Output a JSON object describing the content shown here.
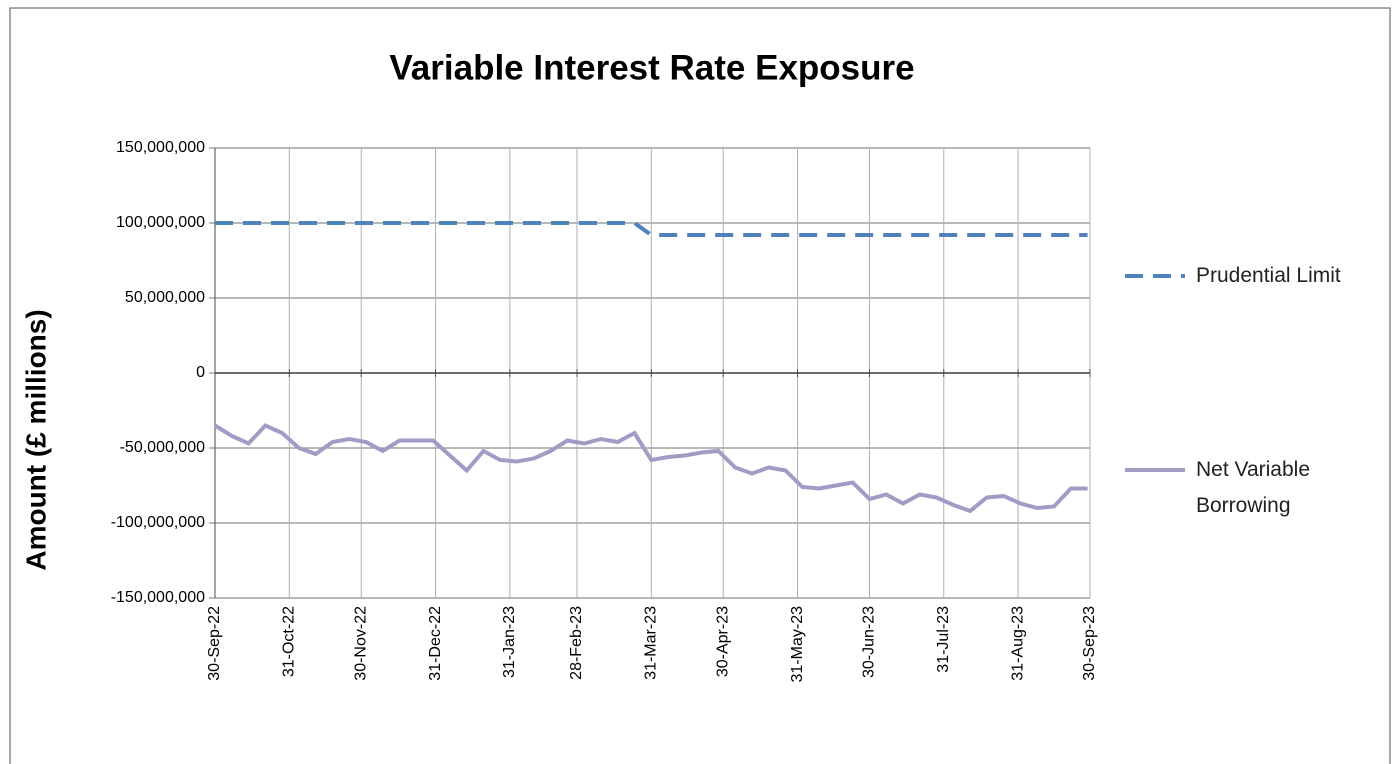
{
  "chart_data": {
    "type": "line",
    "title": "Variable Interest Rate Exposure",
    "y_label": "Amount (£ millions)",
    "x": [
      "2022-09-30",
      "2022-10-07",
      "2022-10-14",
      "2022-10-21",
      "2022-10-28",
      "2022-11-04",
      "2022-11-11",
      "2022-11-18",
      "2022-11-25",
      "2022-12-02",
      "2022-12-09",
      "2022-12-16",
      "2022-12-23",
      "2022-12-30",
      "2023-01-06",
      "2023-01-13",
      "2023-01-20",
      "2023-01-27",
      "2023-02-03",
      "2023-02-10",
      "2023-02-17",
      "2023-02-24",
      "2023-03-03",
      "2023-03-10",
      "2023-03-17",
      "2023-03-24",
      "2023-03-31",
      "2023-04-07",
      "2023-04-14",
      "2023-04-21",
      "2023-04-28",
      "2023-05-05",
      "2023-05-12",
      "2023-05-19",
      "2023-05-26",
      "2023-06-02",
      "2023-06-09",
      "2023-06-16",
      "2023-06-23",
      "2023-06-30",
      "2023-07-07",
      "2023-07-14",
      "2023-07-21",
      "2023-07-28",
      "2023-08-04",
      "2023-08-11",
      "2023-08-18",
      "2023-08-25",
      "2023-09-01",
      "2023-09-08",
      "2023-09-15",
      "2023-09-22",
      "2023-09-29"
    ],
    "series": [
      {
        "name": "Prudential Limit",
        "color": "#4f81bd",
        "dash": true,
        "values": [
          100000000,
          100000000,
          100000000,
          100000000,
          100000000,
          100000000,
          100000000,
          100000000,
          100000000,
          100000000,
          100000000,
          100000000,
          100000000,
          100000000,
          100000000,
          100000000,
          100000000,
          100000000,
          100000000,
          100000000,
          100000000,
          100000000,
          100000000,
          100000000,
          100000000,
          100000000,
          92000000,
          92000000,
          92000000,
          92000000,
          92000000,
          92000000,
          92000000,
          92000000,
          92000000,
          92000000,
          92000000,
          92000000,
          92000000,
          92000000,
          92000000,
          92000000,
          92000000,
          92000000,
          92000000,
          92000000,
          92000000,
          92000000,
          92000000,
          92000000,
          92000000,
          92000000,
          92000000
        ]
      },
      {
        "name": "Net Variable Borrowing",
        "color": "#a09cc6",
        "dash": false,
        "values": [
          -35000000,
          -42000000,
          -47000000,
          -35000000,
          -40000000,
          -50000000,
          -54000000,
          -46000000,
          -44000000,
          -46000000,
          -52000000,
          -45000000,
          -45000000,
          -45000000,
          -55000000,
          -65000000,
          -52000000,
          -58000000,
          -59000000,
          -57000000,
          -52000000,
          -45000000,
          -47000000,
          -44000000,
          -46000000,
          -40000000,
          -58000000,
          -56000000,
          -55000000,
          -53000000,
          -52000000,
          -63000000,
          -67000000,
          -63000000,
          -65000000,
          -76000000,
          -77000000,
          -75000000,
          -73000000,
          -84000000,
          -81000000,
          -87000000,
          -81000000,
          -83000000,
          -88000000,
          -92000000,
          -83000000,
          -82000000,
          -87000000,
          -90000000,
          -89000000,
          -77000000,
          -77000000
        ]
      }
    ],
    "xlim": [
      "2022-09-30",
      "2023-09-30"
    ],
    "xticks": [
      {
        "value": "2022-09-30",
        "label": "30-Sep-22"
      },
      {
        "value": "2022-10-31",
        "label": "31-Oct-22"
      },
      {
        "value": "2022-11-30",
        "label": "30-Nov-22"
      },
      {
        "value": "2022-12-31",
        "label": "31-Dec-22"
      },
      {
        "value": "2023-01-31",
        "label": "31-Jan-23"
      },
      {
        "value": "2023-02-28",
        "label": "28-Feb-23"
      },
      {
        "value": "2023-03-31",
        "label": "31-Mar-23"
      },
      {
        "value": "2023-04-30",
        "label": "30-Apr-23"
      },
      {
        "value": "2023-05-31",
        "label": "31-May-23"
      },
      {
        "value": "2023-06-30",
        "label": "30-Jun-23"
      },
      {
        "value": "2023-07-31",
        "label": "31-Jul-23"
      },
      {
        "value": "2023-08-31",
        "label": "31-Aug-23"
      },
      {
        "value": "2023-09-30",
        "label": "30-Sep-23"
      }
    ],
    "ylim": [
      -150000000,
      150000000
    ],
    "yticks": [
      {
        "value": -150000000,
        "label": "-150,000,000"
      },
      {
        "value": -100000000,
        "label": "-100,000,000"
      },
      {
        "value": -50000000,
        "label": "-50,000,000"
      },
      0,
      {
        "value": 50000000,
        "label": "50,000,000"
      },
      {
        "value": 100000000,
        "label": "100,000,000"
      },
      {
        "value": 150000000,
        "label": "150,000,000"
      }
    ],
    "grid": true,
    "legend": "right"
  }
}
